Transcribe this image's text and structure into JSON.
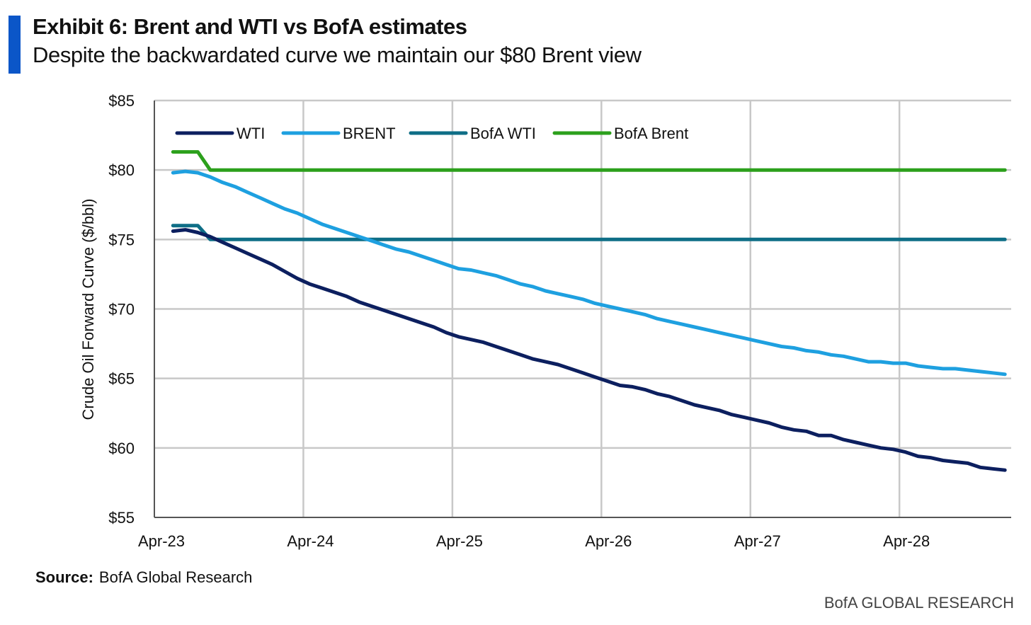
{
  "header": {
    "title": "Exhibit 6: Brent and WTI vs BofA estimates",
    "subtitle": "Despite the backwardated curve we maintain our $80 Brent view"
  },
  "footer": {
    "source_label": "Source:",
    "source_text": "BofA Global Research",
    "brand": "BofA GLOBAL RESEARCH"
  },
  "chart_data": {
    "type": "line",
    "title": "Exhibit 6: Brent and WTI vs BofA estimates",
    "xlabel": "",
    "ylabel": "Crude Oil Forward Curve  ($/bbl)",
    "x_unit": "months since Apr-23",
    "xlim": [
      0,
      69
    ],
    "ylim": [
      55,
      85
    ],
    "yticks": [
      55,
      60,
      65,
      70,
      75,
      80,
      85
    ],
    "ytick_labels": [
      "$55",
      "$60",
      "$65",
      "$70",
      "$75",
      "$80",
      "$85"
    ],
    "xticks": [
      0,
      12,
      24,
      36,
      48,
      60
    ],
    "xtick_labels": [
      "Apr-23",
      "Apr-24",
      "Apr-25",
      "Apr-26",
      "Apr-27",
      "Apr-28"
    ],
    "grid": true,
    "legend_position": "top-left",
    "series": [
      {
        "name": "WTI",
        "color": "#0c1f5f",
        "x_start": 1.5,
        "x_step": 1,
        "values": [
          75.6,
          75.7,
          75.5,
          75.2,
          74.8,
          74.4,
          74.0,
          73.6,
          73.2,
          72.7,
          72.2,
          71.8,
          71.5,
          71.2,
          70.9,
          70.5,
          70.2,
          69.9,
          69.6,
          69.3,
          69.0,
          68.7,
          68.3,
          68.0,
          67.8,
          67.6,
          67.3,
          67.0,
          66.7,
          66.4,
          66.2,
          66.0,
          65.7,
          65.4,
          65.1,
          64.8,
          64.5,
          64.4,
          64.2,
          63.9,
          63.7,
          63.4,
          63.1,
          62.9,
          62.7,
          62.4,
          62.2,
          62.0,
          61.8,
          61.5,
          61.3,
          61.2,
          60.9,
          60.9,
          60.6,
          60.4,
          60.2,
          60.0,
          59.9,
          59.7,
          59.4,
          59.3,
          59.1,
          59.0,
          58.9,
          58.6,
          58.5,
          58.4
        ]
      },
      {
        "name": "BRENT",
        "color": "#1ea0e0",
        "x_start": 1.5,
        "x_step": 1,
        "values": [
          79.8,
          79.9,
          79.8,
          79.5,
          79.1,
          78.8,
          78.4,
          78.0,
          77.6,
          77.2,
          76.9,
          76.5,
          76.1,
          75.8,
          75.5,
          75.2,
          74.9,
          74.6,
          74.3,
          74.1,
          73.8,
          73.5,
          73.2,
          72.9,
          72.8,
          72.6,
          72.4,
          72.1,
          71.8,
          71.6,
          71.3,
          71.1,
          70.9,
          70.7,
          70.4,
          70.2,
          70.0,
          69.8,
          69.6,
          69.3,
          69.1,
          68.9,
          68.7,
          68.5,
          68.3,
          68.1,
          67.9,
          67.7,
          67.5,
          67.3,
          67.2,
          67.0,
          66.9,
          66.7,
          66.6,
          66.4,
          66.2,
          66.2,
          66.1,
          66.1,
          65.9,
          65.8,
          65.7,
          65.7,
          65.6,
          65.5,
          65.4,
          65.3
        ]
      },
      {
        "name": "BofA WTI",
        "color": "#0e6e86",
        "x": [
          1.5,
          3.5,
          4.5,
          68.5
        ],
        "values": [
          76,
          76,
          75,
          75
        ]
      },
      {
        "name": "BofA Brent",
        "color": "#2ca01c",
        "x": [
          1.5,
          3.5,
          4.5,
          68.5
        ],
        "values": [
          81.3,
          81.3,
          80,
          80
        ]
      }
    ]
  }
}
